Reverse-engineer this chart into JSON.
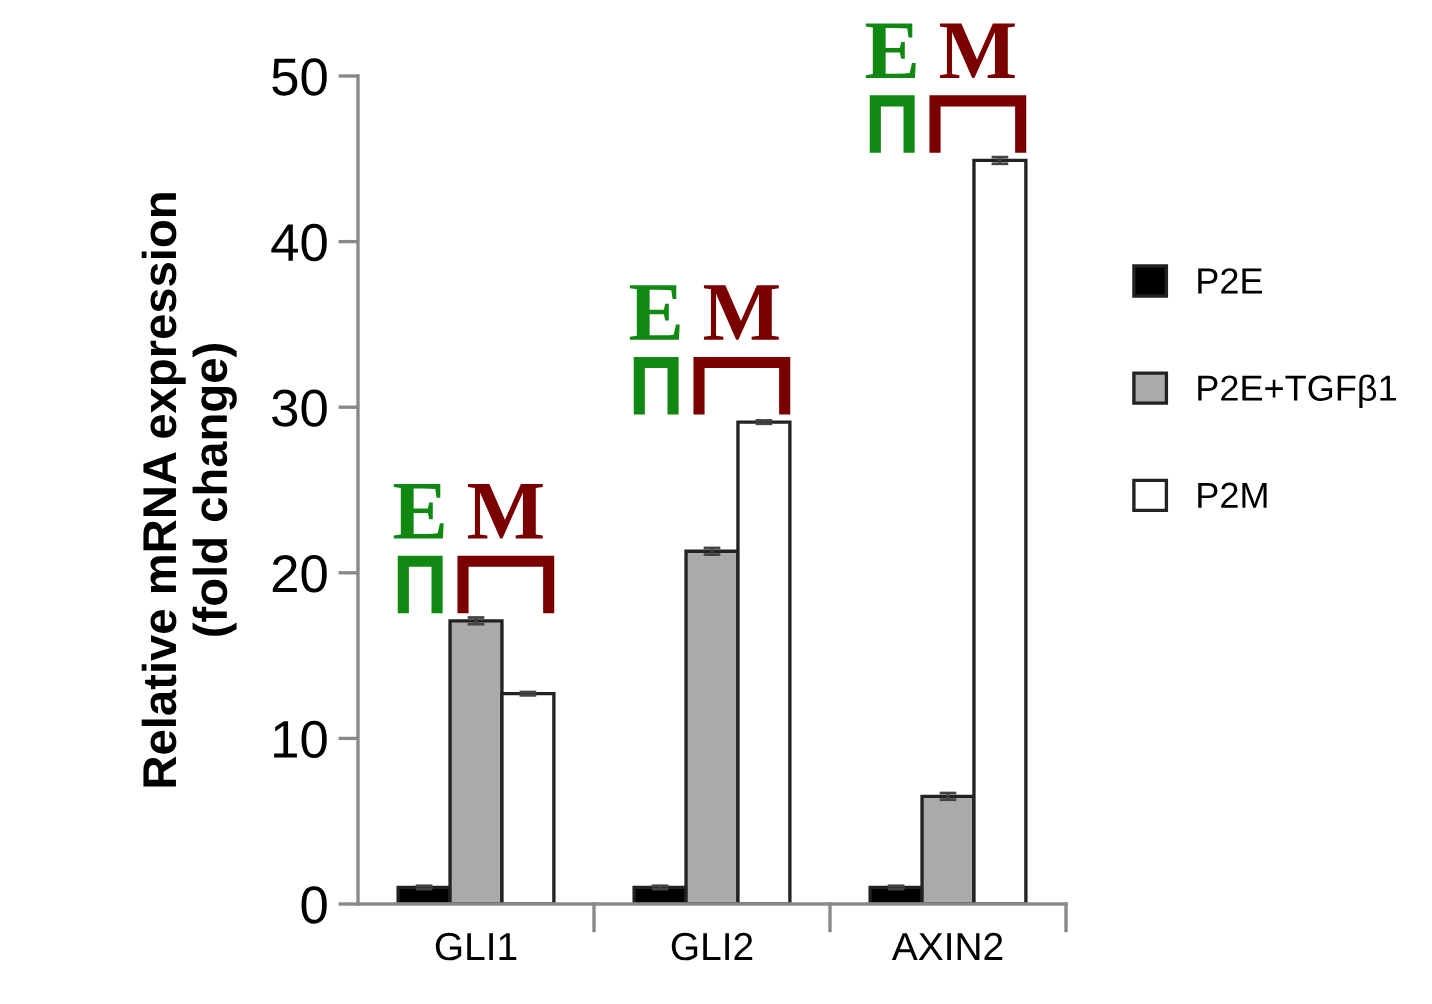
{
  "chart_data": {
    "type": "bar",
    "ylabel": "Relative mRNA expression\n(fold change)",
    "categories": [
      "GLI1",
      "GLI2",
      "AXIN2"
    ],
    "series": [
      {
        "name": "P2E",
        "color": "#000000",
        "values": [
          1.0,
          1.0,
          1.0
        ],
        "errors": [
          0.1,
          0.1,
          0.1
        ]
      },
      {
        "name": "P2E+TGFβ1",
        "color": "#aaaaaa",
        "values": [
          17.1,
          21.3,
          6.5
        ],
        "errors": [
          0.2,
          0.2,
          0.2
        ]
      },
      {
        "name": "P2M",
        "color": "#ffffff",
        "values": [
          12.7,
          29.1,
          44.9
        ],
        "errors": [
          0.1,
          0.1,
          0.2
        ]
      }
    ],
    "ylim": [
      0,
      50
    ],
    "yticks": [
      0,
      10,
      20,
      30,
      40,
      50
    ],
    "grid": false,
    "legend": "right",
    "annotations": [
      "E",
      "M",
      "E",
      "M",
      "E",
      "M"
    ]
  }
}
